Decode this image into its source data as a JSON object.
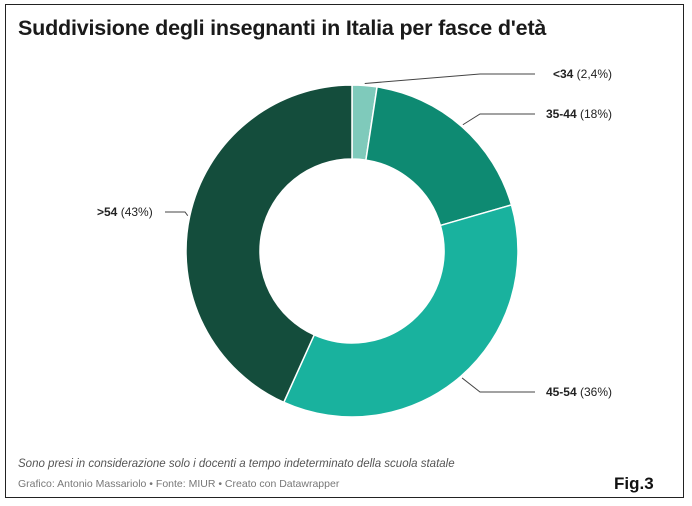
{
  "title": "Suddivisione degli insegnanti in Italia per fasce d'età",
  "note": "Sono presi in considerazione solo i docenti a tempo indeterminato della scuola statale",
  "credits": "Grafico: Antonio Massariolo • Fonte: MIUR • Creato con Datawrapper",
  "fig_label": "Fig.3",
  "chart_data": {
    "type": "pie",
    "donut": true,
    "categories": [
      "<34",
      "35-44",
      "45-54",
      ">54"
    ],
    "values": [
      2.4,
      18,
      36,
      43
    ],
    "value_labels": [
      "(2,4%)",
      "(18%)",
      "(36%)",
      "(43%)"
    ],
    "colors": [
      "#7fcabb",
      "#0e8a72",
      "#19b29e",
      "#144d3c"
    ],
    "title": "Suddivisione degli insegnanti in Italia per fasce d'età"
  }
}
